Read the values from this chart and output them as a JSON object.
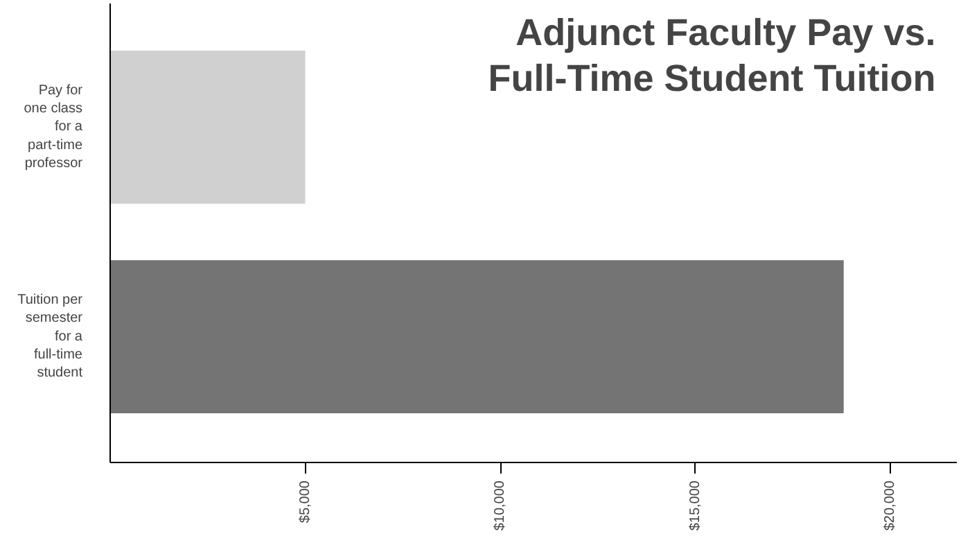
{
  "chart_data": {
    "type": "bar",
    "orientation": "horizontal",
    "title": "Adjunct Faculty Pay vs.\nFull-Time Student Tuition",
    "categories": [
      "Pay for\none class\nfor a\npart-time\nprofessor",
      "Tuition per\nsemester\nfor a\nfull-time\nstudent"
    ],
    "values": [
      5000,
      18800
    ],
    "colors": [
      "#d0d0d0",
      "#747474"
    ],
    "xlim": [
      0,
      21700
    ],
    "xticks": [
      {
        "value": 5000,
        "label": "$5,000"
      },
      {
        "value": 10000,
        "label": "$10,000"
      },
      {
        "value": 15000,
        "label": "$15,000"
      },
      {
        "value": 20000,
        "label": "$20,000"
      }
    ],
    "grid": false
  }
}
